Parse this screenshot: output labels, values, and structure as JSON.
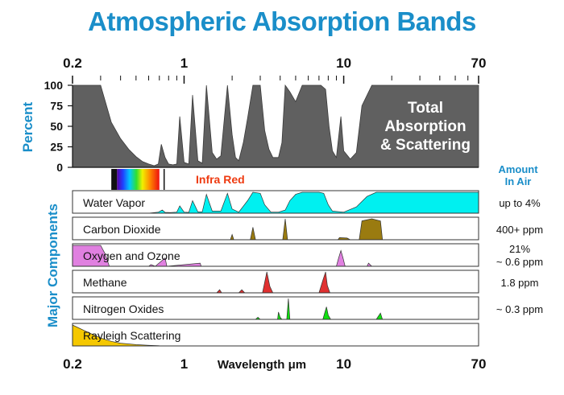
{
  "chart_data": {
    "type": "area",
    "title": "Atmospheric Absorption Bands",
    "x_scale": "log",
    "xlim": [
      0.2,
      70
    ],
    "x_ticks": [
      "0.2",
      "1",
      "10",
      "70"
    ],
    "xlabel": "Wavelength  μm",
    "total": {
      "ylabel": "Percent",
      "ylim": [
        0,
        100
      ],
      "y_ticks": [
        "100",
        "75",
        "50",
        "25",
        "0"
      ],
      "label_lines": [
        "Total",
        "Absorption",
        "& Scattering"
      ],
      "color": "#606060",
      "points": [
        [
          0.2,
          100
        ],
        [
          0.3,
          100
        ],
        [
          0.35,
          55
        ],
        [
          0.4,
          35
        ],
        [
          0.45,
          22
        ],
        [
          0.5,
          13
        ],
        [
          0.55,
          7
        ],
        [
          0.6,
          4
        ],
        [
          0.65,
          2
        ],
        [
          0.69,
          4
        ],
        [
          0.72,
          28
        ],
        [
          0.76,
          12
        ],
        [
          0.8,
          4
        ],
        [
          0.85,
          3
        ],
        [
          0.9,
          4
        ],
        [
          0.94,
          62
        ],
        [
          1.0,
          6
        ],
        [
          1.07,
          4
        ],
        [
          1.13,
          88
        ],
        [
          1.22,
          8
        ],
        [
          1.3,
          5
        ],
        [
          1.38,
          100
        ],
        [
          1.5,
          18
        ],
        [
          1.6,
          10
        ],
        [
          1.7,
          14
        ],
        [
          1.87,
          100
        ],
        [
          2.0,
          40
        ],
        [
          2.1,
          12
        ],
        [
          2.2,
          8
        ],
        [
          2.35,
          30
        ],
        [
          2.5,
          60
        ],
        [
          2.7,
          100
        ],
        [
          3.0,
          100
        ],
        [
          3.2,
          45
        ],
        [
          3.4,
          22
        ],
        [
          3.6,
          12
        ],
        [
          3.9,
          12
        ],
        [
          4.1,
          30
        ],
        [
          4.3,
          100
        ],
        [
          4.6,
          92
        ],
        [
          5.0,
          80
        ],
        [
          5.5,
          100
        ],
        [
          6.0,
          100
        ],
        [
          6.6,
          100
        ],
        [
          7.2,
          100
        ],
        [
          7.7,
          95
        ],
        [
          8.1,
          50
        ],
        [
          8.5,
          20
        ],
        [
          9.0,
          12
        ],
        [
          9.6,
          62
        ],
        [
          10.0,
          20
        ],
        [
          11.0,
          10
        ],
        [
          12.0,
          18
        ],
        [
          13.0,
          75
        ],
        [
          15.0,
          100
        ],
        [
          17.0,
          100
        ],
        [
          20.0,
          100
        ],
        [
          30.0,
          100
        ],
        [
          50.0,
          100
        ],
        [
          70.0,
          100
        ]
      ]
    },
    "spectrum_label": "Infra Red",
    "components_label": "Major Components",
    "amount_header_lines": [
      "Amount",
      "In Air"
    ],
    "components": [
      {
        "name": "Water Vapor",
        "amount": "up to 4%",
        "color": "#00f0f0",
        "points": [
          [
            0.2,
            0
          ],
          [
            0.6,
            0
          ],
          [
            0.69,
            5
          ],
          [
            0.73,
            15
          ],
          [
            0.76,
            4
          ],
          [
            0.82,
            3
          ],
          [
            0.9,
            5
          ],
          [
            0.94,
            35
          ],
          [
            1.0,
            5
          ],
          [
            1.07,
            4
          ],
          [
            1.13,
            60
          ],
          [
            1.22,
            6
          ],
          [
            1.3,
            6
          ],
          [
            1.38,
            90
          ],
          [
            1.5,
            10
          ],
          [
            1.7,
            10
          ],
          [
            1.87,
            95
          ],
          [
            2.0,
            20
          ],
          [
            2.2,
            5
          ],
          [
            2.5,
            60
          ],
          [
            2.7,
            100
          ],
          [
            3.0,
            95
          ],
          [
            3.2,
            40
          ],
          [
            3.5,
            5
          ],
          [
            3.9,
            5
          ],
          [
            4.3,
            15
          ],
          [
            4.6,
            60
          ],
          [
            5.0,
            90
          ],
          [
            5.5,
            100
          ],
          [
            6.0,
            100
          ],
          [
            7.0,
            100
          ],
          [
            7.5,
            95
          ],
          [
            8.0,
            40
          ],
          [
            8.5,
            10
          ],
          [
            10.0,
            5
          ],
          [
            12.0,
            30
          ],
          [
            14.0,
            80
          ],
          [
            16.0,
            100
          ],
          [
            20.0,
            100
          ],
          [
            70.0,
            100
          ]
        ]
      },
      {
        "name": "Carbon Dioxide",
        "amount": "400+ ppm",
        "color": "#9a7b10",
        "points": [
          [
            0.2,
            0
          ],
          [
            1.5,
            0
          ],
          [
            1.95,
            0
          ],
          [
            2.0,
            25
          ],
          [
            2.05,
            0
          ],
          [
            2.6,
            0
          ],
          [
            2.7,
            60
          ],
          [
            2.8,
            0
          ],
          [
            4.15,
            0
          ],
          [
            4.3,
            100
          ],
          [
            4.45,
            0
          ],
          [
            9.2,
            0
          ],
          [
            9.4,
            10
          ],
          [
            10.5,
            8
          ],
          [
            11.0,
            0
          ],
          [
            12.5,
            0
          ],
          [
            13.0,
            90
          ],
          [
            15.0,
            100
          ],
          [
            17.0,
            90
          ],
          [
            17.5,
            0
          ],
          [
            70.0,
            0
          ]
        ]
      },
      {
        "name": "Oxygen and Ozone",
        "amount": "21%\n~ 0.6 ppm",
        "color": "#e080e0",
        "points": [
          [
            0.2,
            100
          ],
          [
            0.3,
            100
          ],
          [
            0.32,
            60
          ],
          [
            0.34,
            0
          ],
          [
            0.6,
            0
          ],
          [
            0.62,
            8
          ],
          [
            0.66,
            0
          ],
          [
            0.76,
            40
          ],
          [
            0.78,
            0
          ],
          [
            1.26,
            15
          ],
          [
            1.28,
            0
          ],
          [
            9.0,
            0
          ],
          [
            9.3,
            40
          ],
          [
            9.6,
            75
          ],
          [
            9.9,
            40
          ],
          [
            10.2,
            0
          ],
          [
            14.0,
            0
          ],
          [
            14.3,
            15
          ],
          [
            15.0,
            0
          ],
          [
            70.0,
            0
          ]
        ]
      },
      {
        "name": "Methane",
        "amount": "1.8 ppm",
        "color": "#e03030",
        "points": [
          [
            0.2,
            0
          ],
          [
            1.6,
            0
          ],
          [
            1.67,
            15
          ],
          [
            1.72,
            0
          ],
          [
            2.2,
            0
          ],
          [
            2.3,
            15
          ],
          [
            2.4,
            0
          ],
          [
            3.1,
            0
          ],
          [
            3.3,
            100
          ],
          [
            3.45,
            30
          ],
          [
            3.6,
            0
          ],
          [
            7.0,
            0
          ],
          [
            7.4,
            60
          ],
          [
            7.7,
            100
          ],
          [
            7.9,
            35
          ],
          [
            8.2,
            0
          ],
          [
            70.0,
            0
          ]
        ]
      },
      {
        "name": "Nitrogen Oxides",
        "amount": "~ 0.3 ppm",
        "color": "#10e010",
        "points": [
          [
            0.2,
            0
          ],
          [
            2.8,
            0
          ],
          [
            2.9,
            10
          ],
          [
            3.0,
            0
          ],
          [
            3.85,
            0
          ],
          [
            3.9,
            35
          ],
          [
            4.0,
            10
          ],
          [
            4.1,
            0
          ],
          [
            4.4,
            0
          ],
          [
            4.5,
            100
          ],
          [
            4.6,
            0
          ],
          [
            7.4,
            0
          ],
          [
            7.8,
            60
          ],
          [
            8.0,
            20
          ],
          [
            8.3,
            0
          ],
          [
            16.0,
            0
          ],
          [
            17.0,
            30
          ],
          [
            17.5,
            0
          ],
          [
            70.0,
            0
          ]
        ]
      },
      {
        "name": "Rayleigh Scattering",
        "amount": "",
        "color": "#f5c800",
        "points": [
          [
            0.2,
            100
          ],
          [
            0.25,
            65
          ],
          [
            0.3,
            38
          ],
          [
            0.35,
            22
          ],
          [
            0.4,
            13
          ],
          [
            0.5,
            6
          ],
          [
            0.6,
            3
          ],
          [
            0.7,
            1
          ],
          [
            0.9,
            0
          ],
          [
            70.0,
            0
          ]
        ]
      }
    ]
  }
}
